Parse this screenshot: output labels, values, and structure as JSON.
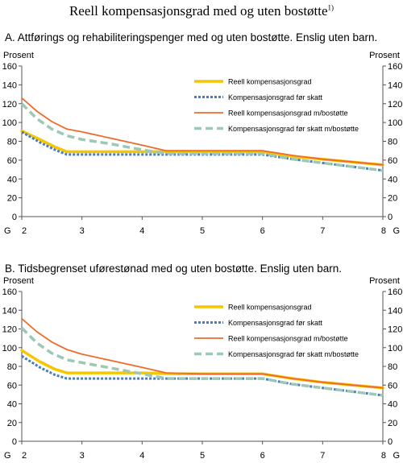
{
  "title": "Reell kompensasjonsgrad med og uten bostøtte",
  "title_note": "1)",
  "colors": {
    "reell": "#f6c700",
    "for_skatt": "#4a7cc2",
    "reell_bostotte": "#ef6b2a",
    "for_skatt_bostotte": "#9cc8b4"
  },
  "chart_data": [
    {
      "type": "line",
      "title": "A. Attførings og rehabiliteringspenger med og uten bostøtte. Enslig uten barn.",
      "ylabel_left": "Prosent",
      "ylabel_right": "Prosent",
      "xlabel_left": "G",
      "xlabel_right": "G",
      "xlim": [
        2,
        8
      ],
      "ylim": [
        0,
        160
      ],
      "xticks": [
        2,
        3,
        4,
        5,
        6,
        7,
        8
      ],
      "yticks": [
        0,
        20,
        40,
        60,
        80,
        100,
        120,
        140,
        160
      ],
      "grid": false,
      "legend": "top-right",
      "series": [
        {
          "name": "Reell kompensasjonsgrad",
          "color_key": "reell",
          "style": "solid",
          "x": [
            2,
            2.3,
            2.55,
            2.75,
            3,
            3.5,
            4,
            4.4,
            5,
            5.5,
            6,
            6.5,
            7,
            7.5,
            8
          ],
          "y": [
            91,
            82,
            74,
            69,
            69,
            69,
            69,
            69,
            69,
            69,
            69,
            64,
            61,
            58,
            55
          ]
        },
        {
          "name": "Kompensasjonsgrad før skatt",
          "color_key": "for_skatt",
          "style": "dotted",
          "x": [
            2,
            2.3,
            2.55,
            2.75,
            3,
            3.5,
            4,
            4.5,
            5,
            5.5,
            6,
            6.5,
            7,
            7.5,
            8
          ],
          "y": [
            90,
            79,
            71,
            66,
            66,
            66,
            66,
            66,
            66,
            66,
            66,
            61,
            57,
            53,
            49
          ]
        },
        {
          "name": "Reell kompensasjonsgrad m/bostøtte",
          "color_key": "reell_bostotte",
          "style": "solid-thin",
          "x": [
            2,
            2.25,
            2.5,
            2.75,
            3,
            3.5,
            4,
            4.4,
            5,
            5.5,
            6,
            6.5,
            7,
            7.5,
            8
          ],
          "y": [
            126,
            112,
            101,
            93,
            90,
            83,
            76,
            70,
            70,
            70,
            70,
            65,
            61,
            58,
            55
          ]
        },
        {
          "name": "Kompensasjonsgrad før skatt m/bostøtte",
          "color_key": "for_skatt_bostotte",
          "style": "dashed",
          "x": [
            2,
            2.25,
            2.5,
            2.75,
            3,
            3.5,
            4,
            4.4,
            5,
            5.5,
            6,
            6.5,
            7,
            7.5,
            8
          ],
          "y": [
            120,
            104,
            93,
            86,
            82,
            77,
            71,
            67,
            67,
            67,
            67,
            61,
            57,
            53,
            49
          ]
        }
      ]
    },
    {
      "type": "line",
      "title": "B. Tidsbegrenset uførestønad med og uten  bostøtte. Enslig uten barn.",
      "ylabel_left": "Prosent",
      "ylabel_right": "Prosent",
      "xlabel_left": "G",
      "xlabel_right": "G",
      "xlim": [
        2,
        8
      ],
      "ylim": [
        0,
        160
      ],
      "xticks": [
        2,
        3,
        4,
        5,
        6,
        7,
        8
      ],
      "yticks": [
        0,
        20,
        40,
        60,
        80,
        100,
        120,
        140,
        160
      ],
      "grid": false,
      "legend": "top-right",
      "series": [
        {
          "name": "Reell kompensasjonsgrad",
          "color_key": "reell",
          "style": "solid",
          "x": [
            2,
            2.3,
            2.55,
            2.75,
            3,
            3.5,
            4,
            4.5,
            5,
            5.5,
            6,
            6.5,
            7,
            7.5,
            8
          ],
          "y": [
            97,
            85,
            77,
            73,
            73,
            73,
            73,
            72,
            72,
            72,
            72,
            67,
            63,
            60,
            57
          ]
        },
        {
          "name": "Kompensasjonsgrad før skatt",
          "color_key": "for_skatt",
          "style": "dotted",
          "x": [
            2,
            2.3,
            2.55,
            2.75,
            3,
            3.5,
            4,
            4.5,
            5,
            5.5,
            6,
            6.5,
            7,
            7.5,
            8
          ],
          "y": [
            91,
            79,
            71,
            67,
            67,
            67,
            67,
            67,
            67,
            67,
            67,
            61,
            57,
            53,
            49
          ]
        },
        {
          "name": "Reell kompensasjonsgrad m/bostøtte",
          "color_key": "reell_bostotte",
          "style": "solid-thin",
          "x": [
            2,
            2.25,
            2.5,
            2.75,
            3,
            3.5,
            4,
            4.4,
            5,
            5.5,
            6,
            6.5,
            7,
            7.5,
            8
          ],
          "y": [
            131,
            117,
            106,
            98,
            93,
            86,
            79,
            73,
            72,
            72,
            72,
            67,
            63,
            60,
            57
          ]
        },
        {
          "name": "Kompensasjonsgrad før skatt m/bostøtte",
          "color_key": "for_skatt_bostotte",
          "style": "dashed",
          "x": [
            2,
            2.25,
            2.5,
            2.75,
            3,
            3.5,
            4,
            4.4,
            5,
            5.5,
            6,
            6.5,
            7,
            7.5,
            8
          ],
          "y": [
            121,
            105,
            94,
            87,
            84,
            78,
            72,
            67,
            67,
            67,
            67,
            61,
            57,
            53,
            49
          ]
        }
      ]
    }
  ]
}
